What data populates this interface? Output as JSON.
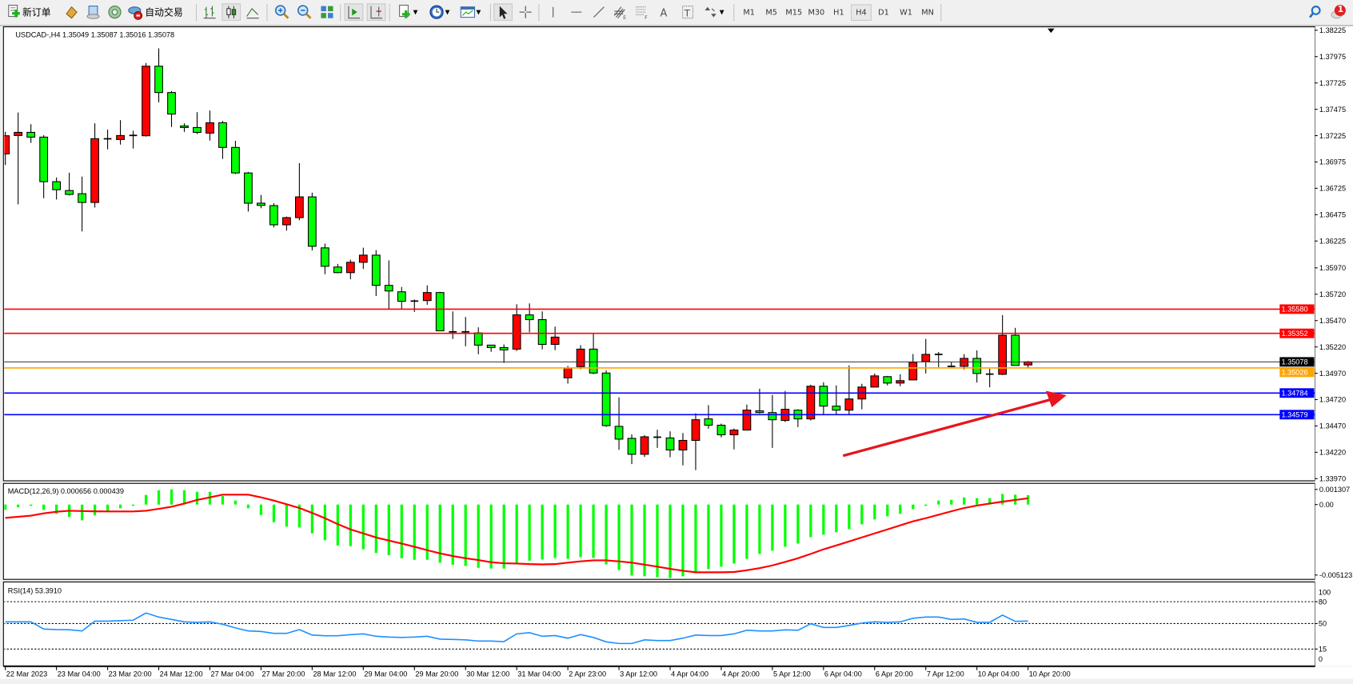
{
  "toolbar": {
    "new_order_label": "新订单",
    "auto_trading_label": "自动交易",
    "timeframes": [
      "M1",
      "M5",
      "M15",
      "M30",
      "H1",
      "H4",
      "D1",
      "W1",
      "MN"
    ],
    "active_timeframe": "H4",
    "notification_count": "1",
    "icons": [
      "new-order-icon",
      "market-watch-icon",
      "data-window-icon",
      "navigator-icon",
      "auto-trading-icon",
      "bar-chart-icon",
      "candlestick-icon",
      "line-chart-icon",
      "zoom-in-icon",
      "zoom-out-icon",
      "tile-windows-icon",
      "auto-scroll-icon",
      "chart-shift-icon",
      "indicators-icon",
      "periods-icon",
      "templates-icon",
      "cursor-icon",
      "crosshair-icon",
      "vertical-line-icon",
      "horizontal-line-icon",
      "trendline-icon",
      "fibonacci-fan-icon",
      "fibonacci-retracement-icon",
      "text-icon",
      "text-label-icon",
      "arrows-icon",
      "search-icon",
      "notification-icon"
    ]
  },
  "chart": {
    "header": "USDCAD-,H4  1.35049 1.35087 1.35016 1.35078",
    "colors": {
      "bull": "#ff0000",
      "bear": "#00ff00",
      "resistance": "#ff0000",
      "support": "#0000ff",
      "bid": "#000000",
      "level_orange": "#ffa500",
      "macd_signal": "#ff0000",
      "rsi": "#1e90ff",
      "arrow": "#e8141e"
    }
  },
  "chart_data": [
    {
      "type": "candlestick",
      "symbol": "USDCAD-",
      "timeframe": "H4",
      "ylim": [
        1.3397,
        1.38225
      ],
      "y_ticks": [
        "1.38225",
        "1.37975",
        "1.37725",
        "1.37475",
        "1.37225",
        "1.36975",
        "1.36725",
        "1.36475",
        "1.36225",
        "1.35970",
        "1.35720",
        "1.35470",
        "1.35220",
        "1.34970",
        "1.34720",
        "1.34470",
        "1.34220",
        "1.33970"
      ],
      "x_ticks": [
        "22 Mar 2023",
        "23 Mar 04:00",
        "23 Mar 20:00",
        "24 Mar 12:00",
        "27 Mar 04:00",
        "27 Mar 20:00",
        "28 Mar 12:00",
        "29 Mar 04:00",
        "29 Mar 20:00",
        "30 Mar 12:00",
        "31 Mar 04:00",
        "2 Apr 23:00",
        "3 Apr 12:00",
        "4 Apr 04:00",
        "4 Apr 20:00",
        "5 Apr 12:00",
        "6 Apr 04:00",
        "6 Apr 20:00",
        "7 Apr 12:00",
        "10 Apr 04:00",
        "10 Apr 20:00"
      ],
      "horizontal_lines": [
        {
          "price": "1.35580",
          "color": "#ff0000"
        },
        {
          "price": "1.35352",
          "color": "#ff0000"
        },
        {
          "price": "1.35078",
          "color": "#000000"
        },
        {
          "price": "1.35026",
          "color": "#ffa500"
        },
        {
          "price": "1.34784",
          "color": "#0000ff"
        },
        {
          "price": "1.34579",
          "color": "#0000ff"
        }
      ],
      "ohlc": [
        [
          1.37052,
          1.37261,
          1.36946,
          1.37224
        ],
        [
          1.37226,
          1.37445,
          1.36573,
          1.37256
        ],
        [
          1.37256,
          1.37334,
          1.37156,
          1.37211
        ],
        [
          1.37211,
          1.37229,
          1.36631,
          1.36788
        ],
        [
          1.36788,
          1.36828,
          1.36619,
          1.36712
        ],
        [
          1.36704,
          1.36873,
          1.36657,
          1.36667
        ],
        [
          1.36674,
          1.36836,
          1.36316,
          1.36591
        ],
        [
          1.36591,
          1.37342,
          1.36543,
          1.37196
        ],
        [
          1.37195,
          1.37282,
          1.37095,
          1.37195
        ],
        [
          1.37188,
          1.37372,
          1.3714,
          1.37226
        ],
        [
          1.37227,
          1.37272,
          1.37103,
          1.37227
        ],
        [
          1.37224,
          1.37914,
          1.37216,
          1.37884
        ],
        [
          1.37884,
          1.38053,
          1.37541,
          1.37634
        ],
        [
          1.37634,
          1.37649,
          1.37307,
          1.3743
        ],
        [
          1.37317,
          1.37342,
          1.37261,
          1.37302
        ],
        [
          1.37302,
          1.37448,
          1.37239,
          1.37256
        ],
        [
          1.37249,
          1.37463,
          1.37178,
          1.37347
        ],
        [
          1.37347,
          1.37365,
          1.37004,
          1.37113
        ],
        [
          1.37113,
          1.37176,
          1.36861,
          1.36871
        ],
        [
          1.36871,
          1.36881,
          1.36505,
          1.36584
        ],
        [
          1.36584,
          1.36662,
          1.36536,
          1.36563
        ],
        [
          1.36561,
          1.36584,
          1.36354,
          1.36379
        ],
        [
          1.36379,
          1.36457,
          1.36324,
          1.36447
        ],
        [
          1.36447,
          1.36964,
          1.36422,
          1.36644
        ],
        [
          1.36644,
          1.36684,
          1.36135,
          1.36175
        ],
        [
          1.3616,
          1.362,
          1.3591,
          1.35985
        ],
        [
          1.35978,
          1.36008,
          1.3592,
          1.35925
        ],
        [
          1.35925,
          1.36048,
          1.35862,
          1.36023
        ],
        [
          1.36023,
          1.36162,
          1.3596,
          1.36091
        ],
        [
          1.36091,
          1.36139,
          1.35703,
          1.35804
        ],
        [
          1.35804,
          1.36041,
          1.3558,
          1.35751
        ],
        [
          1.35743,
          1.35789,
          1.3558,
          1.35653
        ],
        [
          1.35655,
          1.3567,
          1.35552,
          1.35655
        ],
        [
          1.3566,
          1.35804,
          1.3562,
          1.35736
        ],
        [
          1.35736,
          1.35743,
          1.3537,
          1.35373
        ],
        [
          1.35363,
          1.35557,
          1.35295,
          1.35363
        ],
        [
          1.35363,
          1.35504,
          1.35227,
          1.35363
        ],
        [
          1.35353,
          1.35406,
          1.35151,
          1.35237
        ],
        [
          1.35237,
          1.3524,
          1.35174,
          1.35214
        ],
        [
          1.35214,
          1.35244,
          1.35068,
          1.35192
        ],
        [
          1.35199,
          1.35625,
          1.35181,
          1.35524
        ],
        [
          1.35524,
          1.35633,
          1.35358,
          1.35479
        ],
        [
          1.35479,
          1.35557,
          1.35197,
          1.35244
        ],
        [
          1.35244,
          1.35413,
          1.35189,
          1.35313
        ],
        [
          1.34927,
          1.3504,
          1.34872,
          1.3502
        ],
        [
          1.35033,
          1.35237,
          1.35008,
          1.35199
        ],
        [
          1.35199,
          1.3535,
          1.34962,
          1.34972
        ],
        [
          1.34972,
          1.34998,
          1.34461,
          1.34473
        ],
        [
          1.34466,
          1.34741,
          1.34244,
          1.34345
        ],
        [
          1.34352,
          1.3439,
          1.34108,
          1.34201
        ],
        [
          1.34201,
          1.34383,
          1.34176,
          1.34367
        ],
        [
          1.34363,
          1.34434,
          1.34262,
          1.34363
        ],
        [
          1.34356,
          1.34419,
          1.34172,
          1.34242
        ],
        [
          1.34242,
          1.34403,
          1.34096,
          1.34333
        ],
        [
          1.34333,
          1.3459,
          1.34051,
          1.34529
        ],
        [
          1.34537,
          1.34668,
          1.34444,
          1.34477
        ],
        [
          1.34477,
          1.34492,
          1.34361,
          1.34386
        ],
        [
          1.34386,
          1.34446,
          1.34247,
          1.34431
        ],
        [
          1.34431,
          1.34673,
          1.34431,
          1.3462
        ],
        [
          1.34613,
          1.34824,
          1.34587,
          1.34597
        ],
        [
          1.34597,
          1.34764,
          1.34262,
          1.34529
        ],
        [
          1.34522,
          1.34802,
          1.34507,
          1.34628
        ],
        [
          1.3462,
          1.34628,
          1.34459,
          1.34537
        ],
        [
          1.34537,
          1.34862,
          1.34522,
          1.34847
        ],
        [
          1.34847,
          1.34885,
          1.34582,
          1.34658
        ],
        [
          1.34658,
          1.34855,
          1.34582,
          1.3462
        ],
        [
          1.3462,
          1.35044,
          1.34582,
          1.34726
        ],
        [
          1.34726,
          1.3487,
          1.34628,
          1.34839
        ],
        [
          1.34839,
          1.34968,
          1.34839,
          1.34945
        ],
        [
          1.34938,
          1.34945,
          1.34855,
          1.34877
        ],
        [
          1.34877,
          1.3496,
          1.34847,
          1.349
        ],
        [
          1.34907,
          1.35152,
          1.34907,
          1.35074
        ],
        [
          1.35081,
          1.35296,
          1.34968,
          1.35149
        ],
        [
          1.35149,
          1.35172,
          1.35028,
          1.35149
        ],
        [
          1.35036,
          1.35074,
          1.35028,
          1.35036
        ],
        [
          1.35036,
          1.35152,
          1.35006,
          1.35111
        ],
        [
          1.35111,
          1.35187,
          1.34882,
          1.34968
        ],
        [
          1.34962,
          1.35013,
          1.34837,
          1.34962
        ],
        [
          1.3496,
          1.35522,
          1.34953,
          1.35331
        ],
        [
          1.35331,
          1.35401,
          1.35044,
          1.35044
        ],
        [
          1.35049,
          1.35087,
          1.35016,
          1.35078
        ]
      ]
    },
    {
      "type": "bar+line",
      "title": "MACD(12,26,9) 0.000656 0.000439",
      "y_ticks": [
        "0.001307",
        "0.00",
        "-0.005123"
      ],
      "ylim": [
        -0.005123,
        0.001307
      ],
      "histogram": [
        -0.00037,
        -0.00019,
        -9e-05,
        -0.00037,
        -0.00065,
        -0.00087,
        -0.0011,
        -0.00076,
        -0.00043,
        -0.00026,
        -9e-05,
        0.00067,
        0.001,
        0.00106,
        0.001,
        0.00089,
        0.00089,
        0.0006,
        0.00028,
        -0.00026,
        -0.00073,
        -0.00123,
        -0.00154,
        -0.0016,
        -0.00201,
        -0.00249,
        -0.00285,
        -0.0029,
        -0.00312,
        -0.00337,
        -0.00353,
        -0.00374,
        -0.00385,
        -0.00385,
        -0.00406,
        -0.0042,
        -0.00428,
        -0.00441,
        -0.00446,
        -0.00446,
        -0.00409,
        -0.00391,
        -0.00383,
        -0.00372,
        -0.00378,
        -0.00366,
        -0.00372,
        -0.00417,
        -0.00456,
        -0.00495,
        -0.005,
        -0.00506,
        -0.00512,
        -0.005,
        -0.00467,
        -0.0045,
        -0.00433,
        -0.00411,
        -0.00378,
        -0.00344,
        -0.00322,
        -0.00294,
        -0.00272,
        -0.00227,
        -0.0021,
        -0.00193,
        -0.00171,
        -0.00138,
        -0.00104,
        -0.00082,
        -0.00065,
        -0.00032,
        -4e-05,
        0.00028,
        0.00033,
        0.0005,
        0.00045,
        0.00045,
        0.00074,
        0.00069,
        0.000656
      ],
      "signal": [
        -0.00093,
        -0.00085,
        -0.00077,
        -0.00061,
        -0.0005,
        -0.00043,
        -0.00045,
        -0.00047,
        -0.00048,
        -0.00048,
        -0.00048,
        -0.00043,
        -0.0003,
        -0.00015,
        7e-05,
        0.00032,
        0.0005,
        0.00069,
        0.00069,
        0.00069,
        0.0005,
        0.00028,
        2e-05,
        -0.00024,
        -0.00058,
        -0.00095,
        -0.00136,
        -0.00173,
        -0.00201,
        -0.00229,
        -0.00251,
        -0.00272,
        -0.00294,
        -0.00318,
        -0.0034,
        -0.00359,
        -0.00374,
        -0.00387,
        -0.00402,
        -0.00409,
        -0.00411,
        -0.00415,
        -0.00417,
        -0.00415,
        -0.00405,
        -0.00396,
        -0.00389,
        -0.00389,
        -0.00396,
        -0.00405,
        -0.00419,
        -0.00433,
        -0.00448,
        -0.00461,
        -0.00472,
        -0.00472,
        -0.00472,
        -0.0047,
        -0.00458,
        -0.00443,
        -0.00424,
        -0.004,
        -0.00374,
        -0.00344,
        -0.00312,
        -0.00285,
        -0.00257,
        -0.00229,
        -0.00201,
        -0.00173,
        -0.00145,
        -0.00117,
        -0.00095,
        -0.00071,
        -0.00047,
        -0.00024,
        -7e-05,
        7e-05,
        0.0002,
        0.00032,
        0.000439
      ]
    },
    {
      "type": "line",
      "title": "RSI(14) 53.3910",
      "y_ticks": [
        "100",
        "80",
        "50",
        "15",
        "0"
      ],
      "ylim": [
        0,
        100
      ],
      "levels": [
        80,
        50,
        15
      ],
      "values": [
        52.3,
        52.3,
        52.3,
        42.4,
        41.7,
        41.5,
        39.8,
        53.3,
        53.3,
        54,
        54.6,
        64.5,
        58.9,
        55.6,
        52.3,
        51.7,
        52.3,
        49,
        44,
        39.8,
        39.1,
        36.5,
        36.5,
        41.7,
        34.2,
        33.2,
        33.2,
        34.8,
        35.8,
        32.5,
        31.5,
        30.9,
        31.5,
        32.5,
        28.6,
        28.2,
        27.6,
        25.9,
        25.9,
        25.2,
        35.8,
        37.5,
        32.5,
        33.5,
        29.9,
        34.8,
        30.9,
        24.9,
        22.6,
        22.6,
        27.6,
        26.6,
        26.6,
        29.9,
        34.2,
        33.5,
        33.5,
        35.8,
        40.8,
        39.8,
        39.8,
        41.4,
        40.8,
        49.7,
        44.7,
        44.7,
        47.4,
        50.7,
        52.3,
        51.7,
        52.3,
        57.3,
        58.9,
        58.9,
        55.6,
        56.3,
        51.7,
        51.7,
        61.6,
        53,
        53.391
      ]
    }
  ]
}
